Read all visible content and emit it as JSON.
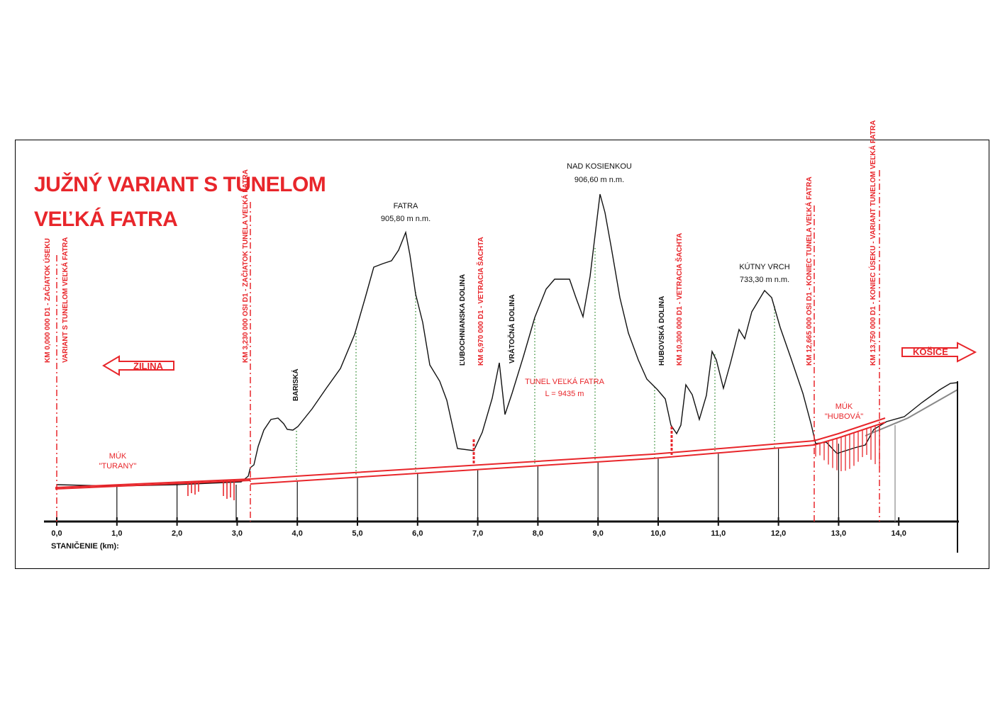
{
  "title": {
    "line1": "JUŽNÝ VARIANT  S TUNELOM",
    "line2": "VEĽKÁ FATRA"
  },
  "directions": {
    "left": "ŽILINA",
    "right": "KOŠICE"
  },
  "axis": {
    "label": "STANIČENIE (km):",
    "ticks": [
      "0,0",
      "1,0",
      "2,0",
      "3,0",
      "4,0",
      "5,0",
      "6,0",
      "7,0",
      "8,0",
      "9,0",
      "10,0",
      "11,0",
      "12,0",
      "13,0",
      "14,0"
    ]
  },
  "peaks": [
    {
      "id": "fatra",
      "name": "FATRA",
      "elev": "905,80 m n.m."
    },
    {
      "id": "nad-kosienkou",
      "name": "NAD KOSIENKOU",
      "elev": "906,60 m n.m."
    },
    {
      "id": "kutny-vrch",
      "name": "KÚTNY VRCH",
      "elev": "733,30 m n.m."
    }
  ],
  "valleys": [
    {
      "id": "bariska",
      "name": "BARISKÁ"
    },
    {
      "id": "lubochnianska",
      "name": "ĽUBOCHNIANSKA DOLINA"
    },
    {
      "id": "vratocna",
      "name": "VRÁTOČNÁ DOLINA"
    },
    {
      "id": "hubovska",
      "name": "HUBOVSKÁ DOLINA"
    }
  ],
  "markers": [
    {
      "id": "start-section",
      "lines": [
        "KM 0,000 000 D1 - ZAČIATOK ÚSEKU",
        "VARIANT S TUNELOM VEĽKÁ FATRA"
      ]
    },
    {
      "id": "tunnel-start",
      "lines": [
        "KM 3,230 000 OSI D1 - ZAČIATOK TUNELA VEĽKÁ FATRA"
      ]
    },
    {
      "id": "shaft-1",
      "lines": [
        "KM 6,970 000 D1 - VETRACIA ŠACHTA"
      ]
    },
    {
      "id": "shaft-2",
      "lines": [
        "KM 10,300 000 D1 - VETRACIA ŠACHTA"
      ]
    },
    {
      "id": "tunnel-end",
      "lines": [
        "KM 12,665 000 OSI D1 - KONIEC TUNELA VEĽKÁ FATRA"
      ]
    },
    {
      "id": "end-section",
      "lines": [
        "KM 13,750 000 D1 - KONIEC ÚSEKU - VARIANT TUNELOM VEĽKÁ FATRA"
      ]
    }
  ],
  "tunnel": {
    "name": "TUNEL VEĽKÁ FATRA",
    "length": "L = 9435 m"
  },
  "interchanges": [
    {
      "id": "turany",
      "line1": "MÚK",
      "line2": "\"TURANY\""
    },
    {
      "id": "hubova",
      "line1": "MÚK",
      "line2": "\"HUBOVÁ\""
    }
  ],
  "colors": {
    "accent": "#e8262b",
    "terrain": "#111111",
    "ground_guides": "#2f8a2f"
  }
}
